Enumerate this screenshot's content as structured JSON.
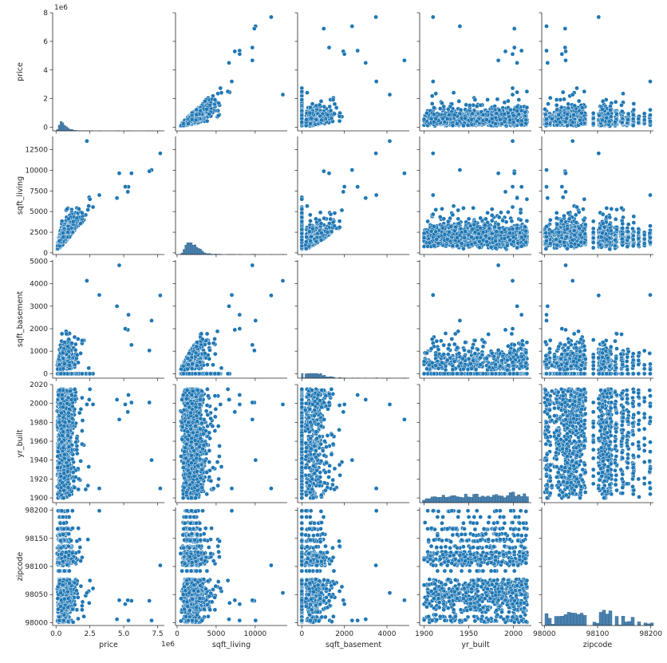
{
  "chart_data": {
    "type": "scatter",
    "title": "",
    "kind": "pairplot",
    "variables": [
      "price",
      "sqft_living",
      "sqft_basement",
      "yr_built",
      "zipcode"
    ],
    "colors": {
      "points": "#1f77b4",
      "hist": "#4a82b0",
      "axes": "#262626"
    },
    "axes": {
      "price": {
        "label": "price",
        "range": [
          -250000,
          8000000
        ],
        "ticks": [
          0,
          2500000,
          5000000,
          7500000
        ],
        "tick_labels": [
          "0.0",
          "2.5",
          "5.0",
          "7.5"
        ],
        "offset_text": "1e6",
        "yticks": [
          0,
          2000000,
          4000000,
          6000000,
          8000000
        ],
        "ytick_labels": [
          "0",
          "2",
          "4",
          "6",
          "8"
        ]
      },
      "sqft_living": {
        "label": "sqft_living",
        "range": [
          -200,
          14100
        ],
        "ticks": [
          0,
          5000,
          10000
        ],
        "tick_labels": [
          "0",
          "5000",
          "10000"
        ],
        "yticks": [
          0,
          2500,
          5000,
          7500,
          10000,
          12500
        ],
        "ytick_labels": [
          "0",
          "2500",
          "5000",
          "7500",
          "10000",
          "12500"
        ]
      },
      "sqft_basement": {
        "label": "sqft_basement",
        "range": [
          -200,
          5050
        ],
        "ticks": [
          0,
          2000,
          4000
        ],
        "tick_labels": [
          "0",
          "2000",
          "4000"
        ],
        "yticks": [
          0,
          1000,
          2000,
          3000,
          4000,
          5000
        ],
        "ytick_labels": [
          "0",
          "1000",
          "2000",
          "3000",
          "4000",
          "5000"
        ]
      },
      "yr_built": {
        "label": "yr_built",
        "range": [
          1895,
          2020
        ],
        "ticks": [
          1900,
          1950,
          2000
        ],
        "tick_labels": [
          "1900",
          "1950",
          "2000"
        ],
        "yticks": [
          1900,
          1920,
          1940,
          1960,
          1980,
          2000,
          2020
        ],
        "ytick_labels": [
          "1900",
          "1920",
          "1940",
          "1960",
          "1980",
          "2000",
          "2020"
        ]
      },
      "zipcode": {
        "label": "zipcode",
        "range": [
          97995,
          98205
        ],
        "ticks": [
          98000,
          98100,
          98200
        ],
        "tick_labels": [
          "98000",
          "98100",
          "98200"
        ],
        "yticks": [
          98000,
          98050,
          98100,
          98150,
          98200
        ],
        "ytick_labels": [
          "98000",
          "98050",
          "98100",
          "98150",
          "98200"
        ]
      }
    },
    "outliers": [
      {
        "price": 7700000,
        "sqft_living": 12050,
        "sqft_basement": 3480,
        "yr_built": 1910,
        "zipcode": 98102
      },
      {
        "price": 7060000,
        "sqft_living": 10040,
        "sqft_basement": 2360,
        "yr_built": 1940,
        "zipcode": 98004
      },
      {
        "price": 6890000,
        "sqft_living": 9890,
        "sqft_basement": 1030,
        "yr_built": 2001,
        "zipcode": 98039
      },
      {
        "price": 5570000,
        "sqft_living": 9640,
        "sqft_basement": 1280,
        "yr_built": 2001,
        "zipcode": 98039
      },
      {
        "price": 5350000,
        "sqft_living": 8000,
        "sqft_basement": 2620,
        "yr_built": 2009,
        "zipcode": 98004
      },
      {
        "price": 5300000,
        "sqft_living": 7390,
        "sqft_basement": 1950,
        "yr_built": 1991,
        "zipcode": 98040
      },
      {
        "price": 5110000,
        "sqft_living": 8010,
        "sqft_basement": 2000,
        "yr_built": 1999,
        "zipcode": 98033
      },
      {
        "price": 4670000,
        "sqft_living": 9640,
        "sqft_basement": 4820,
        "yr_built": 1983,
        "zipcode": 98040
      },
      {
        "price": 4500000,
        "sqft_living": 6640,
        "sqft_basement": 3000,
        "yr_built": 2004,
        "zipcode": 98006
      },
      {
        "price": 2280000,
        "sqft_living": 13540,
        "sqft_basement": 4130,
        "yr_built": 1999,
        "zipcode": 98053
      },
      {
        "price": 3200000,
        "sqft_living": 7000,
        "sqft_basement": 3500,
        "yr_built": 1910,
        "zipcode": 98199
      },
      {
        "price": 2500000,
        "sqft_living": 6500,
        "sqft_basement": 0,
        "yr_built": 2015,
        "zipcode": 98075
      }
    ],
    "histograms": {
      "price": {
        "bins": 60,
        "peak": 450000
      },
      "sqft_living": {
        "bins": 60,
        "peak": 1800
      },
      "sqft_basement": {
        "bins": 60,
        "peak": 0
      },
      "yr_built": {
        "bins": 40,
        "peak": 2005
      },
      "zipcode": {
        "bins": 35,
        "peak": 98103
      }
    }
  }
}
